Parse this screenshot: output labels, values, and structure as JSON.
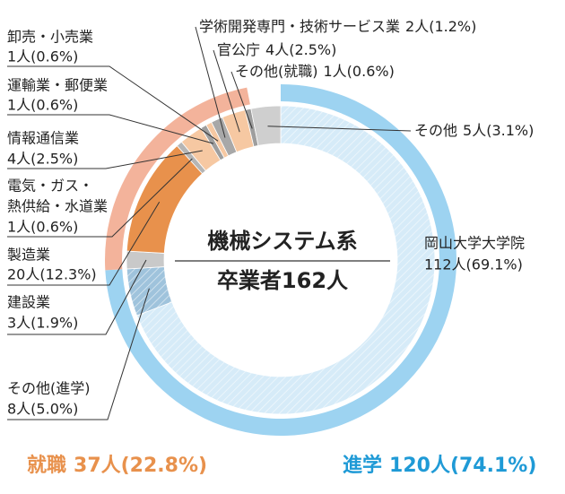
{
  "chart_data": {
    "type": "donut",
    "center_title": "機械システム系",
    "center_subtitle": "卒業者162人",
    "inner": {
      "categories": [
        "岡山大学大学院",
        [
          "その他(進学)"
        ],
        "建設業",
        "製造業",
        [
          "電気・ガス・",
          "熱供給・水道業"
        ],
        "情報通信業",
        "運輸業・郵便業",
        "卸売・小売業",
        "学術開発専門・技術サービス業",
        "官公庁",
        "その他(就職)",
        "その他"
      ],
      "values": [
        112,
        8,
        3,
        20,
        1,
        4,
        1,
        1,
        2,
        4,
        1,
        5
      ],
      "value_labels": [
        "112人(69.1%)",
        "8人(5.0%)",
        "3人(1.9%)",
        "20人(12.3%)",
        "1人(0.6%)",
        "4人(2.5%)",
        "1人(0.6%)",
        "1人(0.6%)",
        "2人(1.2%)",
        "4人(2.5%)",
        "1人(0.6%)",
        "5人(3.1%)"
      ],
      "colors": [
        "#d6ebf8",
        "#9fc3dc",
        "#c9c9c9",
        "#e8914c",
        "#b5b5b5",
        "#f6c8a2",
        "#9e9e9e",
        "#f6c8a2",
        "#a8a8a8",
        "#f6c8a2",
        "#9e9e9e",
        "#cfcfcf"
      ],
      "hatched": [
        true,
        true,
        false,
        false,
        false,
        false,
        false,
        false,
        false,
        false,
        false,
        false
      ]
    },
    "outer": {
      "categories": [
        "進学",
        "就職"
      ],
      "values": [
        120,
        37
      ],
      "value_labels": [
        "120人(74.1%)",
        "37人(22.8%)"
      ],
      "colors": [
        "#9dd3f1",
        "#f3b39b"
      ],
      "label_colors": [
        "#1f9ad6",
        "#e8914c"
      ]
    }
  }
}
